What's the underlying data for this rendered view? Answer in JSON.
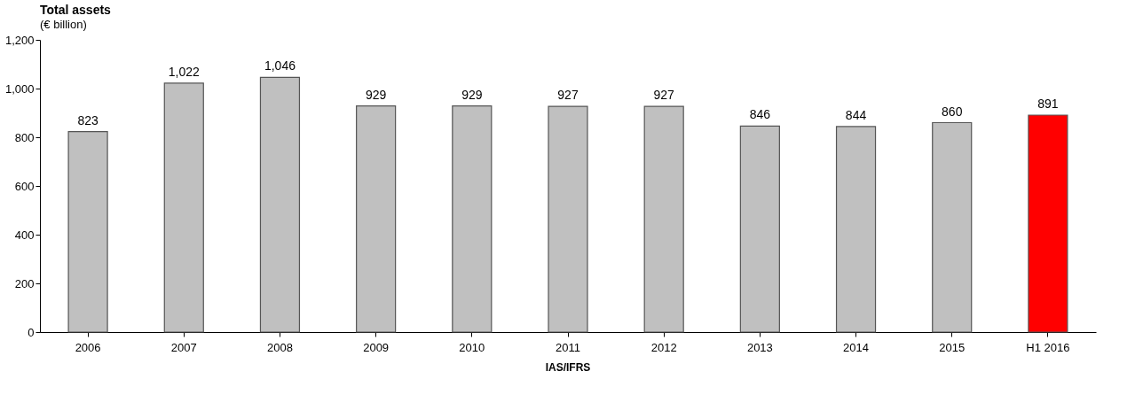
{
  "chart_data": {
    "type": "bar",
    "title": "Total assets",
    "subtitle": "(€ billion)",
    "categories": [
      "2006",
      "2007",
      "2008",
      "2009",
      "2010",
      "2011",
      "2012",
      "2013",
      "2014",
      "2015",
      "H1 2016"
    ],
    "values": [
      823,
      1022,
      1046,
      929,
      929,
      927,
      927,
      846,
      844,
      860,
      891
    ],
    "value_labels": [
      "823",
      "1,022",
      "1,046",
      "929",
      "929",
      "927",
      "927",
      "846",
      "844",
      "860",
      "891"
    ],
    "colors": [
      "#c0c0c0",
      "#c0c0c0",
      "#c0c0c0",
      "#c0c0c0",
      "#c0c0c0",
      "#c0c0c0",
      "#c0c0c0",
      "#c0c0c0",
      "#c0c0c0",
      "#c0c0c0",
      "#ff0000"
    ],
    "ylim": [
      0,
      1200
    ],
    "yticks": [
      0,
      200,
      400,
      600,
      800,
      {
        "value": 1000,
        "label": "1,000"
      },
      {
        "value": 1200,
        "label": "1,200"
      }
    ],
    "grid": false,
    "annotations": [
      "IAS/IFRS"
    ]
  }
}
